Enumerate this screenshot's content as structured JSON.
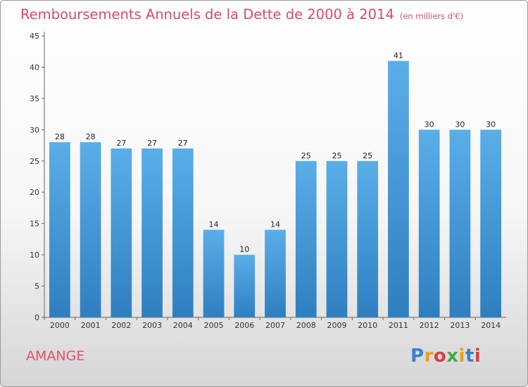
{
  "chart_data": {
    "type": "bar",
    "title": "Remboursements Annuels de la Dette de 2000 à 2014",
    "subtitle": "(en milliers d'€)",
    "categories": [
      "2000",
      "2001",
      "2002",
      "2003",
      "2004",
      "2005",
      "2006",
      "2007",
      "2008",
      "2009",
      "2010",
      "2011",
      "2012",
      "2013",
      "2014"
    ],
    "values": [
      28,
      28,
      27,
      27,
      27,
      14,
      10,
      14,
      25,
      25,
      25,
      41,
      30,
      30,
      30
    ],
    "ylim": [
      0,
      45
    ],
    "yticks": [
      0,
      5,
      10,
      15,
      20,
      25,
      30,
      35,
      40,
      45
    ],
    "grid": false,
    "bar_color": "#4a9edb"
  },
  "footer": {
    "commune": "AMANGE",
    "logo": "Proxiti",
    "logo_colors": [
      "#3a7fd0",
      "#e8a020",
      "#d94040",
      "#46a846",
      "#e8a020",
      "#3a7fd0",
      "#d94040"
    ]
  }
}
